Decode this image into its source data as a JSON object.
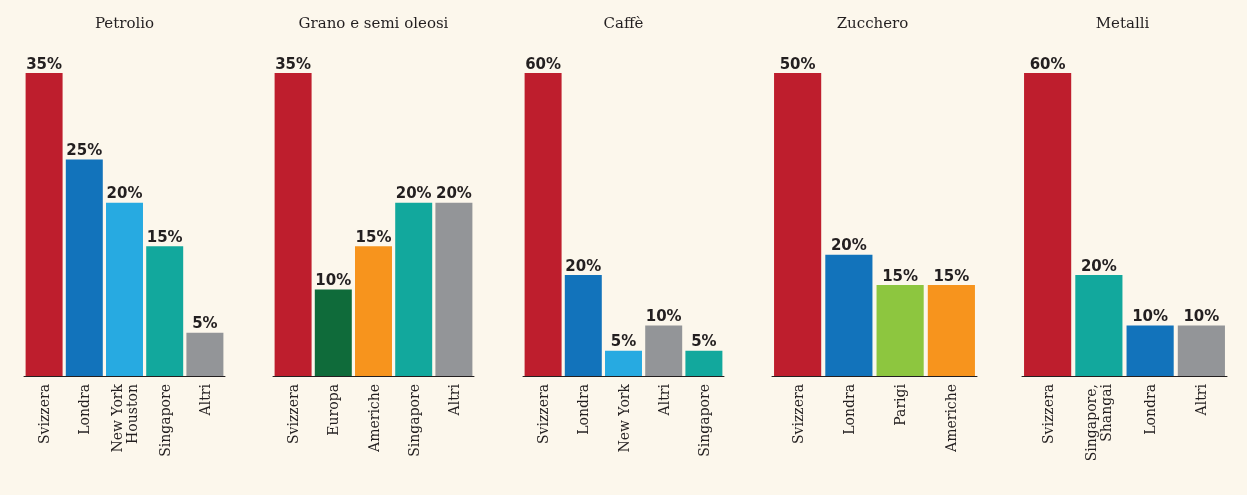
{
  "chart_data": [
    {
      "type": "bar",
      "title": "Petrolio",
      "categories": [
        "Svizzera",
        "Londra",
        "New York\nHouston",
        "Singapore",
        "Altri"
      ],
      "values": [
        35,
        25,
        20,
        15,
        5
      ],
      "value_labels": [
        "35%",
        "25%",
        "20%",
        "15%",
        "5%"
      ],
      "colors": [
        "#be1e2d",
        "#1273bb",
        "#27aae1",
        "#12a89d",
        "#939598"
      ],
      "ylim": [
        0,
        35
      ]
    },
    {
      "type": "bar",
      "title": "Grano e semi oleosi",
      "categories": [
        "Svizzera",
        "Europa",
        "Americhe",
        "Singapore",
        "Altri"
      ],
      "values": [
        35,
        10,
        15,
        20,
        20
      ],
      "value_labels": [
        "35%",
        "10%",
        "15%",
        "20%",
        "20%"
      ],
      "colors": [
        "#be1e2d",
        "#0f6b3a",
        "#f7941d",
        "#12a89d",
        "#939598"
      ],
      "ylim": [
        0,
        35
      ]
    },
    {
      "type": "bar",
      "title": "Caffè",
      "categories": [
        "Svizzera",
        "Londra",
        "New York",
        "Altri",
        "Singapore"
      ],
      "values": [
        60,
        20,
        5,
        10,
        5
      ],
      "value_labels": [
        "60%",
        "20%",
        "5%",
        "10%",
        "5%"
      ],
      "colors": [
        "#be1e2d",
        "#1273bb",
        "#27aae1",
        "#939598",
        "#12a89d"
      ],
      "ylim": [
        0,
        60
      ]
    },
    {
      "type": "bar",
      "title": "Zucchero",
      "categories": [
        "Svizzera",
        "Londra",
        "Parigi",
        "Americhe"
      ],
      "values": [
        50,
        20,
        15,
        15
      ],
      "value_labels": [
        "50%",
        "20%",
        "15%",
        "15%"
      ],
      "colors": [
        "#be1e2d",
        "#1273bb",
        "#8dc63f",
        "#f7941d"
      ],
      "ylim": [
        0,
        50
      ]
    },
    {
      "type": "bar",
      "title": "Metalli",
      "categories": [
        "Svizzera",
        "Singapore,\nShangai",
        "Londra",
        "Altri"
      ],
      "values": [
        60,
        20,
        10,
        10
      ],
      "value_labels": [
        "60%",
        "20%",
        "10%",
        "10%"
      ],
      "colors": [
        "#be1e2d",
        "#12a89d",
        "#1273bb",
        "#939598"
      ],
      "ylim": [
        0,
        60
      ]
    }
  ]
}
